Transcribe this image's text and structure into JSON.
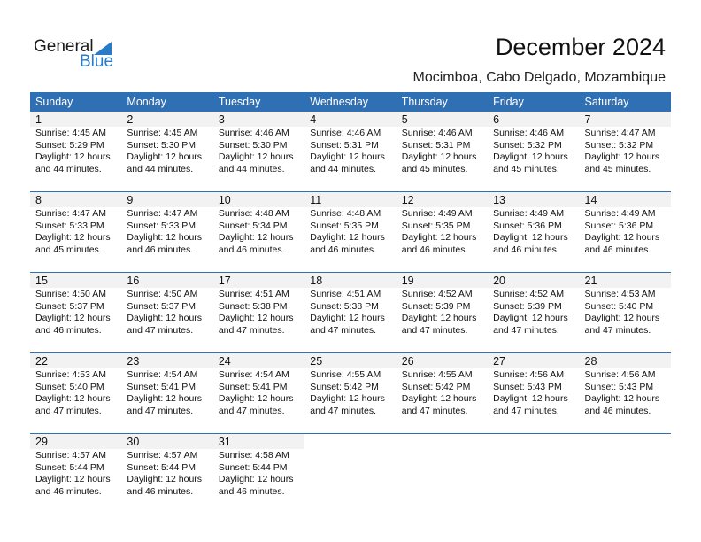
{
  "logo": {
    "text_general": "General",
    "text_blue": "Blue"
  },
  "header": {
    "title": "December 2024",
    "location": "Mocimboa, Cabo Delgado, Mozambique"
  },
  "colors": {
    "header_bg": "#2f6fb3",
    "date_band": "#f2f2f2",
    "logo_blue": "#2a7bc6"
  },
  "weekdays": [
    "Sunday",
    "Monday",
    "Tuesday",
    "Wednesday",
    "Thursday",
    "Friday",
    "Saturday"
  ],
  "weeks": [
    [
      {
        "day": "1",
        "sunrise": "Sunrise: 4:45 AM",
        "sunset": "Sunset: 5:29 PM",
        "daylight": "Daylight: 12 hours and 44 minutes."
      },
      {
        "day": "2",
        "sunrise": "Sunrise: 4:45 AM",
        "sunset": "Sunset: 5:30 PM",
        "daylight": "Daylight: 12 hours and 44 minutes."
      },
      {
        "day": "3",
        "sunrise": "Sunrise: 4:46 AM",
        "sunset": "Sunset: 5:30 PM",
        "daylight": "Daylight: 12 hours and 44 minutes."
      },
      {
        "day": "4",
        "sunrise": "Sunrise: 4:46 AM",
        "sunset": "Sunset: 5:31 PM",
        "daylight": "Daylight: 12 hours and 44 minutes."
      },
      {
        "day": "5",
        "sunrise": "Sunrise: 4:46 AM",
        "sunset": "Sunset: 5:31 PM",
        "daylight": "Daylight: 12 hours and 45 minutes."
      },
      {
        "day": "6",
        "sunrise": "Sunrise: 4:46 AM",
        "sunset": "Sunset: 5:32 PM",
        "daylight": "Daylight: 12 hours and 45 minutes."
      },
      {
        "day": "7",
        "sunrise": "Sunrise: 4:47 AM",
        "sunset": "Sunset: 5:32 PM",
        "daylight": "Daylight: 12 hours and 45 minutes."
      }
    ],
    [
      {
        "day": "8",
        "sunrise": "Sunrise: 4:47 AM",
        "sunset": "Sunset: 5:33 PM",
        "daylight": "Daylight: 12 hours and 45 minutes."
      },
      {
        "day": "9",
        "sunrise": "Sunrise: 4:47 AM",
        "sunset": "Sunset: 5:33 PM",
        "daylight": "Daylight: 12 hours and 46 minutes."
      },
      {
        "day": "10",
        "sunrise": "Sunrise: 4:48 AM",
        "sunset": "Sunset: 5:34 PM",
        "daylight": "Daylight: 12 hours and 46 minutes."
      },
      {
        "day": "11",
        "sunrise": "Sunrise: 4:48 AM",
        "sunset": "Sunset: 5:35 PM",
        "daylight": "Daylight: 12 hours and 46 minutes."
      },
      {
        "day": "12",
        "sunrise": "Sunrise: 4:49 AM",
        "sunset": "Sunset: 5:35 PM",
        "daylight": "Daylight: 12 hours and 46 minutes."
      },
      {
        "day": "13",
        "sunrise": "Sunrise: 4:49 AM",
        "sunset": "Sunset: 5:36 PM",
        "daylight": "Daylight: 12 hours and 46 minutes."
      },
      {
        "day": "14",
        "sunrise": "Sunrise: 4:49 AM",
        "sunset": "Sunset: 5:36 PM",
        "daylight": "Daylight: 12 hours and 46 minutes."
      }
    ],
    [
      {
        "day": "15",
        "sunrise": "Sunrise: 4:50 AM",
        "sunset": "Sunset: 5:37 PM",
        "daylight": "Daylight: 12 hours and 46 minutes."
      },
      {
        "day": "16",
        "sunrise": "Sunrise: 4:50 AM",
        "sunset": "Sunset: 5:37 PM",
        "daylight": "Daylight: 12 hours and 47 minutes."
      },
      {
        "day": "17",
        "sunrise": "Sunrise: 4:51 AM",
        "sunset": "Sunset: 5:38 PM",
        "daylight": "Daylight: 12 hours and 47 minutes."
      },
      {
        "day": "18",
        "sunrise": "Sunrise: 4:51 AM",
        "sunset": "Sunset: 5:38 PM",
        "daylight": "Daylight: 12 hours and 47 minutes."
      },
      {
        "day": "19",
        "sunrise": "Sunrise: 4:52 AM",
        "sunset": "Sunset: 5:39 PM",
        "daylight": "Daylight: 12 hours and 47 minutes."
      },
      {
        "day": "20",
        "sunrise": "Sunrise: 4:52 AM",
        "sunset": "Sunset: 5:39 PM",
        "daylight": "Daylight: 12 hours and 47 minutes."
      },
      {
        "day": "21",
        "sunrise": "Sunrise: 4:53 AM",
        "sunset": "Sunset: 5:40 PM",
        "daylight": "Daylight: 12 hours and 47 minutes."
      }
    ],
    [
      {
        "day": "22",
        "sunrise": "Sunrise: 4:53 AM",
        "sunset": "Sunset: 5:40 PM",
        "daylight": "Daylight: 12 hours and 47 minutes."
      },
      {
        "day": "23",
        "sunrise": "Sunrise: 4:54 AM",
        "sunset": "Sunset: 5:41 PM",
        "daylight": "Daylight: 12 hours and 47 minutes."
      },
      {
        "day": "24",
        "sunrise": "Sunrise: 4:54 AM",
        "sunset": "Sunset: 5:41 PM",
        "daylight": "Daylight: 12 hours and 47 minutes."
      },
      {
        "day": "25",
        "sunrise": "Sunrise: 4:55 AM",
        "sunset": "Sunset: 5:42 PM",
        "daylight": "Daylight: 12 hours and 47 minutes."
      },
      {
        "day": "26",
        "sunrise": "Sunrise: 4:55 AM",
        "sunset": "Sunset: 5:42 PM",
        "daylight": "Daylight: 12 hours and 47 minutes."
      },
      {
        "day": "27",
        "sunrise": "Sunrise: 4:56 AM",
        "sunset": "Sunset: 5:43 PM",
        "daylight": "Daylight: 12 hours and 47 minutes."
      },
      {
        "day": "28",
        "sunrise": "Sunrise: 4:56 AM",
        "sunset": "Sunset: 5:43 PM",
        "daylight": "Daylight: 12 hours and 46 minutes."
      }
    ],
    [
      {
        "day": "29",
        "sunrise": "Sunrise: 4:57 AM",
        "sunset": "Sunset: 5:44 PM",
        "daylight": "Daylight: 12 hours and 46 minutes."
      },
      {
        "day": "30",
        "sunrise": "Sunrise: 4:57 AM",
        "sunset": "Sunset: 5:44 PM",
        "daylight": "Daylight: 12 hours and 46 minutes."
      },
      {
        "day": "31",
        "sunrise": "Sunrise: 4:58 AM",
        "sunset": "Sunset: 5:44 PM",
        "daylight": "Daylight: 12 hours and 46 minutes."
      },
      null,
      null,
      null,
      null
    ]
  ]
}
